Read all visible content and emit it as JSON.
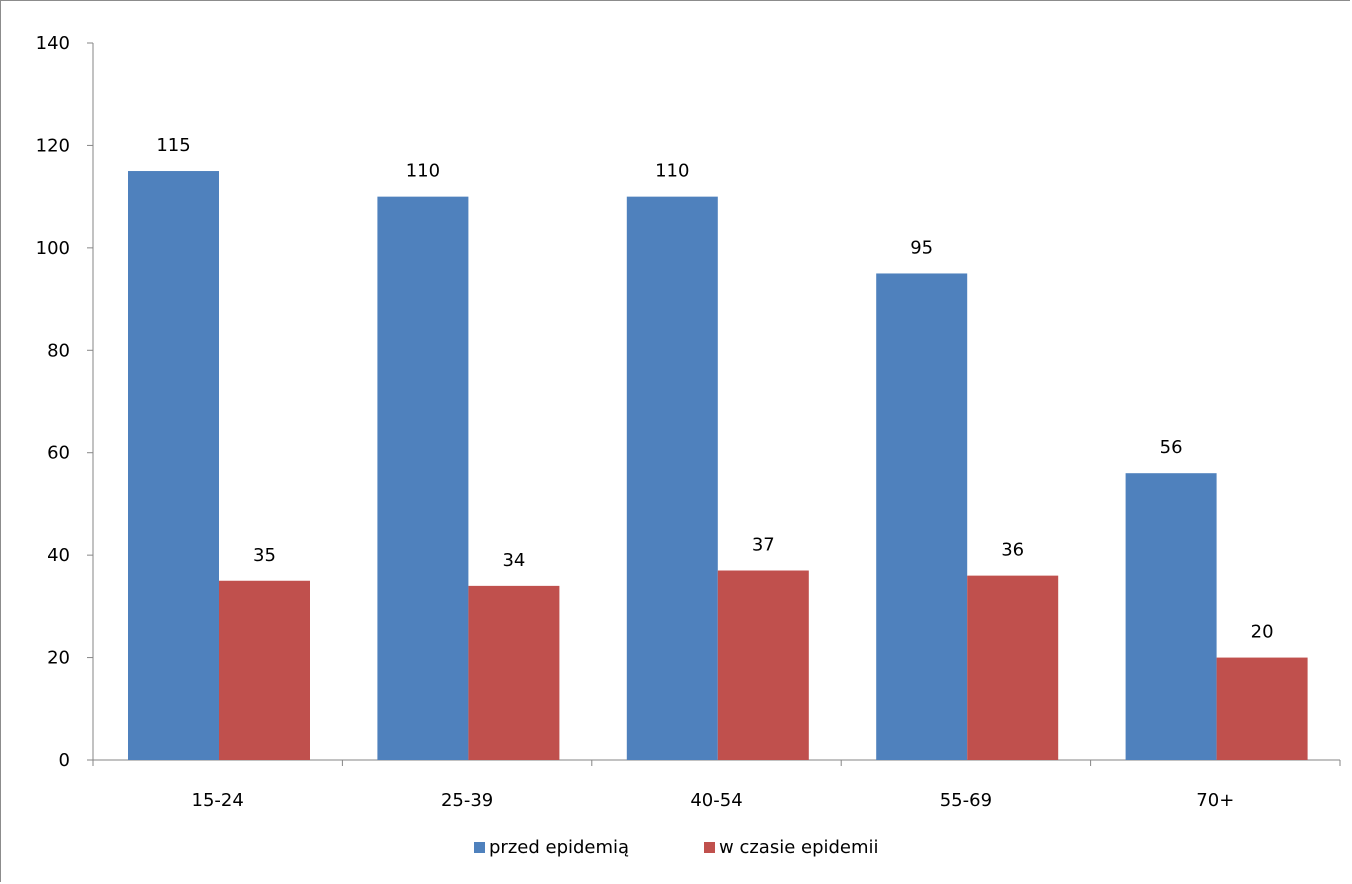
{
  "chart_data": {
    "type": "bar",
    "categories": [
      "15-24",
      "25-39",
      "40-54",
      "55-69",
      "70+"
    ],
    "series": [
      {
        "name": "przed epidemią",
        "values": [
          115,
          110,
          110,
          95,
          56
        ],
        "color": "#4f81bd"
      },
      {
        "name": "w czasie epidemii",
        "values": [
          35,
          34,
          37,
          36,
          20
        ],
        "color": "#c0504d"
      }
    ],
    "ylim": [
      0,
      140
    ],
    "yticks": [
      0,
      20,
      40,
      60,
      80,
      100,
      120,
      140
    ],
    "legend_position": "bottom",
    "grid": false,
    "data_labels": true
  }
}
